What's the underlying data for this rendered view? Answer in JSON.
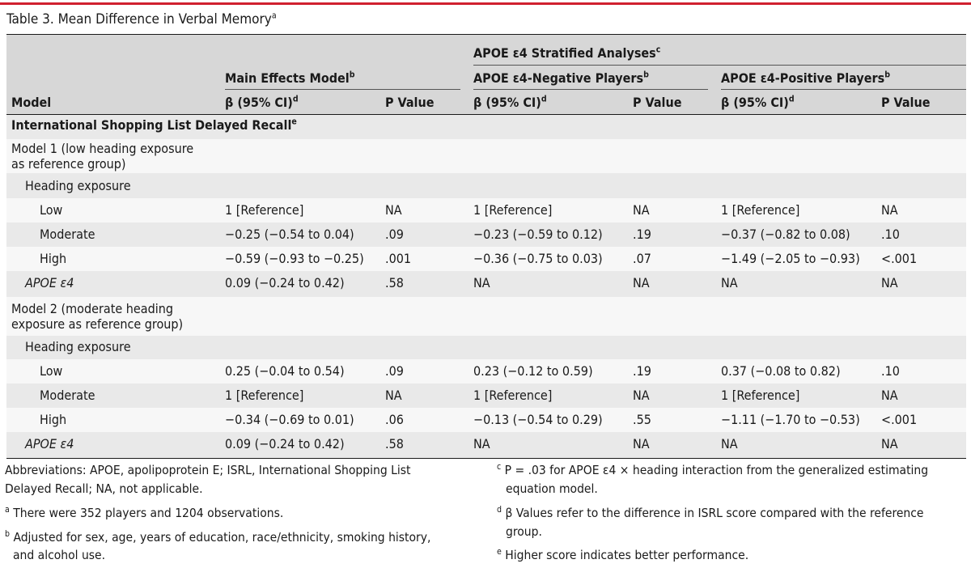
{
  "title": "Table 3. Mean Difference in Verbal Memory",
  "title_sup": "a",
  "header": {
    "stratified": "APOE ε4 Stratified Analyses",
    "stratified_sup": "c",
    "main_effects": "Main Effects Model",
    "main_effects_sup": "b",
    "negative": "APOE ε4-Negative Players",
    "negative_sup": "b",
    "positive": "APOE ε4-Positive Players",
    "positive_sup": "b",
    "model": "Model",
    "beta": "β (95% CI)",
    "beta_sup": "d",
    "p_value": "P Value"
  },
  "section_title": "International Shopping List Delayed Recall",
  "section_sup": "e",
  "model1": {
    "label_line1": "Model 1 (low heading exposure",
    "label_line2": "as reference group)",
    "heading": "Heading exposure",
    "rows": [
      {
        "label": "Low",
        "me_b": "1 [Reference]",
        "me_p": "NA",
        "neg_b": "1 [Reference]",
        "neg_p": "NA",
        "pos_b": "1 [Reference]",
        "pos_p": "NA"
      },
      {
        "label": "Moderate",
        "me_b": "−0.25 (−0.54 to 0.04)",
        "me_p": ".09",
        "neg_b": "−0.23 (−0.59 to 0.12)",
        "neg_p": ".19",
        "pos_b": "−0.37 (−0.82 to 0.08)",
        "pos_p": ".10"
      },
      {
        "label": "High",
        "me_b": "−0.59 (−0.93 to −0.25)",
        "me_p": ".001",
        "neg_b": "−0.36 (−0.75 to 0.03)",
        "neg_p": ".07",
        "pos_b": "−1.49 (−2.05 to −0.93)",
        "pos_p": "<.001"
      }
    ],
    "apoe": {
      "label": "APOE ε4",
      "me_b": "0.09 (−0.24 to 0.42)",
      "me_p": ".58",
      "neg_b": "NA",
      "neg_p": "NA",
      "pos_b": "NA",
      "pos_p": "NA"
    }
  },
  "model2": {
    "label_line1": "Model 2 (moderate heading",
    "label_line2": "exposure as reference group)",
    "heading": "Heading exposure",
    "rows": [
      {
        "label": "Low",
        "me_b": "0.25 (−0.04 to 0.54)",
        "me_p": ".09",
        "neg_b": "0.23 (−0.12 to 0.59)",
        "neg_p": ".19",
        "pos_b": "0.37 (−0.08 to 0.82)",
        "pos_p": ".10"
      },
      {
        "label": "Moderate",
        "me_b": "1 [Reference]",
        "me_p": "NA",
        "neg_b": "1 [Reference]",
        "neg_p": "NA",
        "pos_b": "1 [Reference]",
        "pos_p": "NA"
      },
      {
        "label": "High",
        "me_b": "−0.34 (−0.69 to 0.01)",
        "me_p": ".06",
        "neg_b": "−0.13 (−0.54 to 0.29)",
        "neg_p": ".55",
        "pos_b": "−1.11 (−1.70 to −0.53)",
        "pos_p": "<.001"
      }
    ],
    "apoe": {
      "label": "APOE ε4",
      "me_b": "0.09 (−0.24 to 0.42)",
      "me_p": ".58",
      "neg_b": "NA",
      "neg_p": "NA",
      "pos_b": "NA",
      "pos_p": "NA"
    }
  },
  "footnotes": {
    "abbrev_line1": "Abbreviations: APOE, apolipoprotein E; ISRL, International Shopping List",
    "abbrev_line2": "Delayed Recall; NA, not applicable.",
    "a_mark": "a",
    "a_text": "There were 352 players and 1204 observations.",
    "b_mark": "b",
    "b_line1": "Adjusted for sex, age, years of education, race/ethnicity, smoking history,",
    "b_line2": "and alcohol use.",
    "c_mark": "c",
    "c_line1": "P = .03 for APOE ε4 × heading interaction from the generalized estimating",
    "c_line2": "equation model.",
    "d_mark": "d",
    "d_line1": "β Values refer to the difference in ISRL score compared with the reference",
    "d_line2": "group.",
    "e_mark": "e",
    "e_text": "Higher score indicates better performance."
  },
  "colors": {
    "accent_bar": "#d0202f",
    "header_bg": "#d7d7d7",
    "row_bg": "#e9e9e9",
    "stripe_bg": "#f7f7f7"
  }
}
